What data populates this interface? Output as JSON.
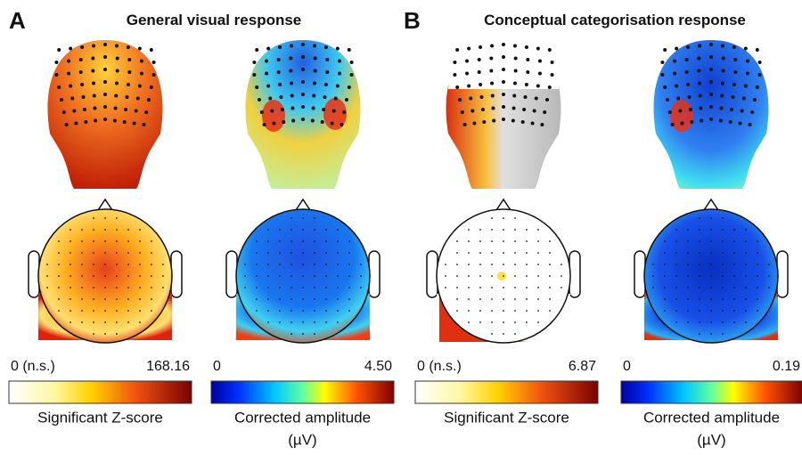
{
  "panels": [
    {
      "label": "A",
      "title": "General visual response",
      "maps": [
        {
          "colorbar": {
            "min_label": "0 (n.s.)",
            "max_label": "168.16"
          },
          "caption": [
            "Significant Z-score"
          ]
        },
        {
          "colorbar": {
            "min_label": "0",
            "max_label": "4.50"
          },
          "caption": [
            "Corrected amplitude",
            "(µV)"
          ]
        }
      ]
    },
    {
      "label": "B",
      "title": "Conceptual categorisation response",
      "maps": [
        {
          "colorbar": {
            "min_label": "0 (n.s.)",
            "max_label": "6.87"
          },
          "caption": [
            "Significant Z-score"
          ]
        },
        {
          "colorbar": {
            "min_label": "0",
            "max_label": "0.19"
          },
          "caption": [
            "Corrected amplitude",
            "(µV)"
          ]
        }
      ]
    }
  ]
}
